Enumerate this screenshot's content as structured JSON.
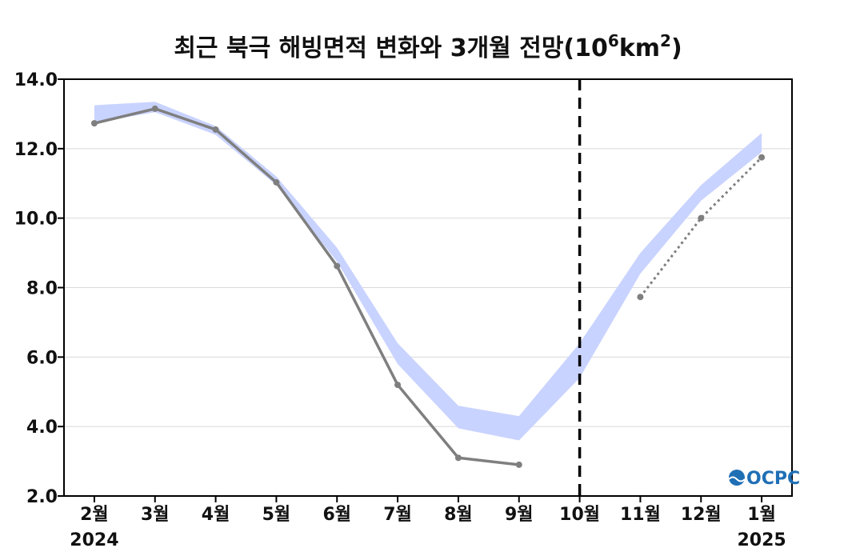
{
  "chart_data": {
    "type": "line",
    "title": "최근 북극 해빙면적 변화와 3개월 전망(10⁶km²)",
    "title_main": "최근 북극 해빙면적 변화와 3개월 전망(10",
    "title_exp1": "6",
    "title_unit": "km",
    "title_exp2": "2",
    "title_close": ")",
    "categories": [
      "2월",
      "3월",
      "4월",
      "5월",
      "6월",
      "7월",
      "8월",
      "9월",
      "10월",
      "11월",
      "12월",
      "1월"
    ],
    "year_labels": [
      {
        "category": "2월",
        "label": "2024"
      },
      {
        "category": "1월",
        "label": "2025"
      }
    ],
    "ylim": [
      2.0,
      14.0
    ],
    "yticks": [
      "2.0",
      "4.0",
      "6.0",
      "8.0",
      "10.0",
      "12.0",
      "14.0"
    ],
    "grid": true,
    "climatology_band": {
      "color": "#c9d3ff",
      "lower": [
        12.75,
        13.05,
        12.4,
        10.95,
        8.75,
        5.8,
        3.95,
        3.6,
        5.4,
        8.4,
        10.5,
        11.9
      ],
      "upper": [
        13.25,
        13.35,
        12.65,
        11.2,
        9.15,
        6.4,
        4.6,
        4.3,
        6.4,
        9.0,
        10.95,
        12.45
      ]
    },
    "series": [
      {
        "style": "observed",
        "color": "#7f7f7f",
        "values": [
          12.73,
          13.15,
          12.55,
          11.03,
          8.62,
          5.2,
          3.1,
          2.9,
          null,
          null,
          null,
          null
        ]
      },
      {
        "style": "forecast",
        "color": "#7f7f7f",
        "values": [
          null,
          null,
          null,
          null,
          null,
          null,
          null,
          null,
          null,
          7.73,
          10.0,
          11.75
        ]
      }
    ],
    "divider_category": "10월",
    "logo": "OCPC"
  }
}
